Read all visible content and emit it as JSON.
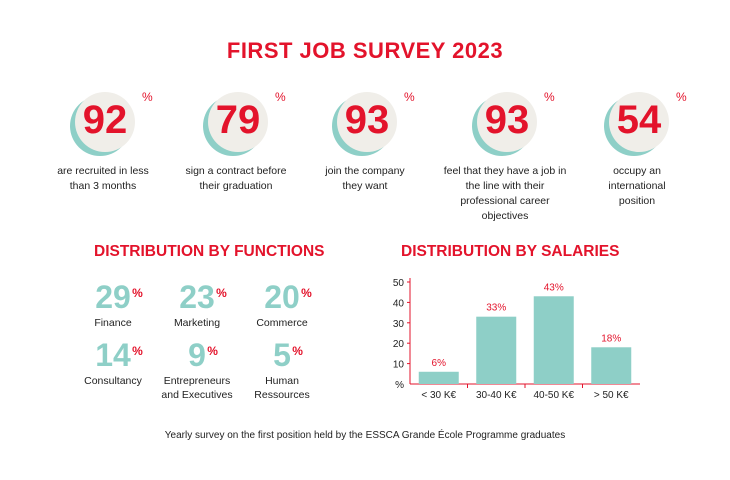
{
  "title": "FIRST JOB SURVEY 2023",
  "percent_symbol": "%",
  "stats": [
    {
      "value": "92",
      "label": "are recruited in less than 3 months"
    },
    {
      "value": "79",
      "label": "sign a contract before their graduation"
    },
    {
      "value": "93",
      "label": "join the company they want"
    },
    {
      "value": "93",
      "label": "feel that they have a job in the line with their professional career objectives"
    },
    {
      "value": "54",
      "label": "occupy an international position"
    }
  ],
  "functions": {
    "title": "DISTRIBUTION BY FUNCTIONS",
    "items": [
      {
        "value": "29",
        "label": "Finance"
      },
      {
        "value": "23",
        "label": "Marketing"
      },
      {
        "value": "20",
        "label": "Commerce"
      },
      {
        "value": "14",
        "label": "Consultancy"
      },
      {
        "value": "9",
        "label": "Entrepreneurs and Executives"
      },
      {
        "value": "5",
        "label": "Human Ressources"
      }
    ]
  },
  "chart_data": {
    "type": "bar",
    "title": "DISTRIBUTION BY SALARIES",
    "categories": [
      "< 30 K€",
      "30-40 K€",
      "40-50 K€",
      "> 50 K€"
    ],
    "values": [
      6,
      33,
      43,
      18
    ],
    "data_labels": [
      "6%",
      "33%",
      "43%",
      "18%"
    ],
    "ylabel": "%",
    "yticks": [
      "50",
      "40",
      "30",
      "20",
      "10"
    ],
    "ylim": [
      0,
      50
    ],
    "grid": false,
    "bar_color": "#8ecfc7",
    "axis_color": "#e3132b",
    "label_color": "#e3132b"
  },
  "footer": "Yearly survey on the first position held by the ESSCA Grande École Programme graduates",
  "colors": {
    "accent": "#e3132b",
    "teal": "#8ecfc7",
    "circle": "#f0eee9"
  }
}
